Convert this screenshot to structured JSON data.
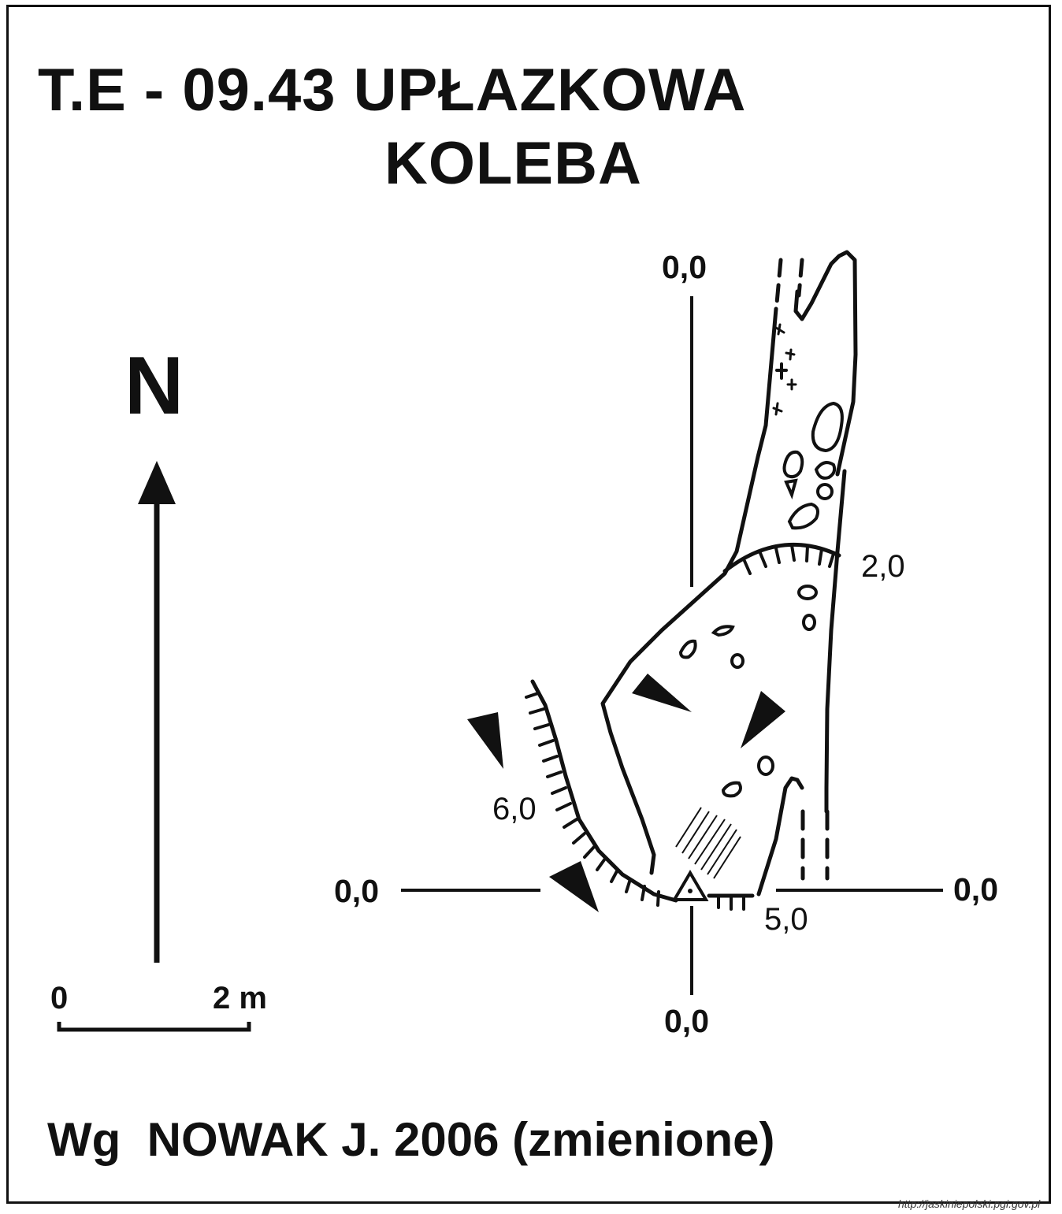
{
  "title": {
    "line1": "T.E - 09.43  UPŁAZKOWA",
    "line2": "KOLEBA"
  },
  "compass": {
    "label": "N"
  },
  "scale_bar": {
    "start_label": "0",
    "end_label": "2 m"
  },
  "coordinates": {
    "top": "0,0",
    "bottom": "0,0",
    "left": "0,0",
    "right": "0,0"
  },
  "depths": {
    "upper_right": "2,0",
    "left_slope": "6,0",
    "entrance": "5,0"
  },
  "author": "Wg  NOWAK J. 2006 (zmienione)",
  "source_url": "http://jaskiniepolski.pgi.gov.pl",
  "colors": {
    "ink": "#111111",
    "background": "#ffffff"
  }
}
